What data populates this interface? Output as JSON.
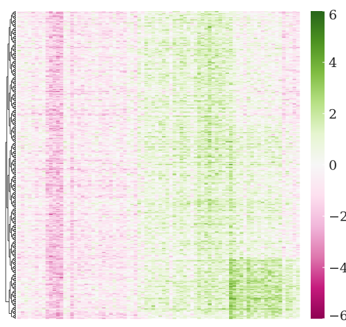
{
  "chart_data": {
    "type": "heatmap",
    "title": "",
    "xlabel": "",
    "ylabel": "",
    "rows": 300,
    "cols": 80,
    "dendrogram": "rows, left side",
    "column_groups": [
      {
        "cols": [
          0,
          33
        ],
        "tendency": "mostly negative, with strongly negative columns near cols 8-12"
      },
      {
        "cols": [
          34,
          74
        ],
        "tendency": "mostly positive, strongest in cols 50-60"
      },
      {
        "cols": [
          75,
          79
        ],
        "tendency": "mixed"
      }
    ],
    "row_blocks": [
      {
        "rows": [
          0,
          110
        ],
        "tendency": "left block negative, middle block positive, right block negative"
      },
      {
        "rows": [
          110,
          240
        ],
        "tendency": "left block mildly negative, middle block positive"
      },
      {
        "rows": [
          240,
          300
        ],
        "tendency": "right block positive"
      }
    ],
    "value_range": [
      -6,
      6
    ],
    "colorbar": {
      "ticks": [
        6,
        4,
        2,
        0,
        -2,
        -4,
        -6
      ],
      "labels": [
        "6",
        "4",
        "2",
        "0",
        "−2",
        "−4",
        "−6"
      ],
      "colors": [
        "#8e0152",
        "#c51b7d",
        "#de77ae",
        "#f1b6da",
        "#fde0ef",
        "#f7f7f7",
        "#e6f5d0",
        "#b8e186",
        "#7fbc41",
        "#4d9221",
        "#276419"
      ],
      "position": "right"
    }
  }
}
